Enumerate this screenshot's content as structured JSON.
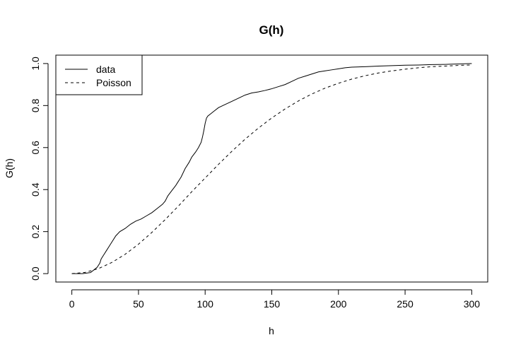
{
  "chart_data": {
    "type": "line",
    "title": "G(h)",
    "xlabel": "h",
    "ylabel": "G(h)",
    "xlim": [
      -12,
      312
    ],
    "ylim": [
      -0.04,
      1.04
    ],
    "xticks": [
      0,
      50,
      100,
      150,
      200,
      250,
      300
    ],
    "xtick_labels": [
      "0",
      "50",
      "100",
      "150",
      "200",
      "250",
      "300"
    ],
    "yticks": [
      0.0,
      0.2,
      0.4,
      0.6,
      0.8,
      1.0
    ],
    "ytick_labels": [
      "0.0",
      "0.2",
      "0.4",
      "0.6",
      "0.8",
      "1.0"
    ],
    "grid": false,
    "legend_position": "top-left",
    "series": [
      {
        "name": "data",
        "style": "solid",
        "color": "#000000",
        "x": [
          0,
          8,
          14,
          17,
          19,
          21,
          22,
          24,
          26,
          28,
          30,
          33,
          36,
          40,
          44,
          48,
          52,
          56,
          60,
          64,
          68,
          70,
          72,
          75,
          78,
          80,
          82,
          85,
          88,
          90,
          93,
          95,
          97,
          98,
          99,
          100,
          101,
          102,
          104,
          107,
          110,
          115,
          120,
          125,
          130,
          135,
          140,
          145,
          150,
          155,
          160,
          165,
          170,
          175,
          180,
          185,
          190,
          195,
          200,
          205,
          210,
          220,
          230,
          240,
          250,
          260,
          270,
          280,
          290,
          300
        ],
        "y": [
          0.0,
          0.0,
          0.005,
          0.02,
          0.03,
          0.05,
          0.07,
          0.09,
          0.11,
          0.13,
          0.15,
          0.18,
          0.2,
          0.215,
          0.235,
          0.25,
          0.26,
          0.275,
          0.29,
          0.31,
          0.33,
          0.345,
          0.37,
          0.395,
          0.42,
          0.44,
          0.46,
          0.5,
          0.53,
          0.555,
          0.58,
          0.6,
          0.625,
          0.65,
          0.68,
          0.715,
          0.74,
          0.75,
          0.76,
          0.775,
          0.79,
          0.805,
          0.82,
          0.835,
          0.85,
          0.86,
          0.865,
          0.872,
          0.88,
          0.89,
          0.9,
          0.915,
          0.93,
          0.94,
          0.95,
          0.96,
          0.965,
          0.97,
          0.975,
          0.98,
          0.983,
          0.985,
          0.988,
          0.99,
          0.992,
          0.993,
          0.995,
          0.996,
          0.998,
          1.0
        ]
      },
      {
        "name": "Poisson",
        "style": "dashed",
        "color": "#000000",
        "x": [
          0,
          10,
          20,
          30,
          40,
          50,
          60,
          70,
          80,
          90,
          100,
          110,
          120,
          130,
          140,
          150,
          160,
          170,
          180,
          190,
          200,
          210,
          220,
          230,
          240,
          250,
          260,
          270,
          280,
          290,
          300
        ],
        "y": [
          0.0,
          0.006,
          0.024,
          0.053,
          0.092,
          0.14,
          0.196,
          0.257,
          0.322,
          0.39,
          0.455,
          0.52,
          0.582,
          0.64,
          0.693,
          0.741,
          0.784,
          0.822,
          0.855,
          0.883,
          0.906,
          0.926,
          0.942,
          0.955,
          0.965,
          0.973,
          0.98,
          0.985,
          0.988,
          0.991,
          0.993
        ]
      }
    ]
  }
}
